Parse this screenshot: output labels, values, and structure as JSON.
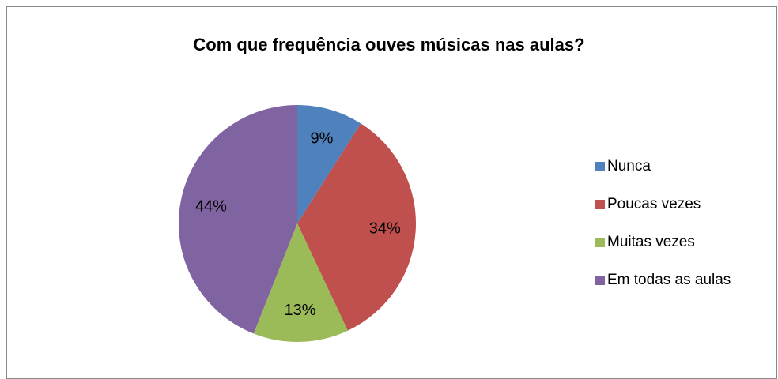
{
  "chart_data": {
    "type": "pie",
    "title": "Com que frequência ouves músicas nas aulas?",
    "categories": [
      "Nunca",
      "Poucas vezes",
      "Muitas vezes",
      "Em todas as aulas"
    ],
    "values": [
      9,
      34,
      13,
      44
    ],
    "value_labels": [
      "9%",
      "34%",
      "13%",
      "44%"
    ],
    "colors": [
      "#4f81bd",
      "#c0504d",
      "#9bbb59",
      "#8064a2"
    ],
    "legend": "right"
  }
}
